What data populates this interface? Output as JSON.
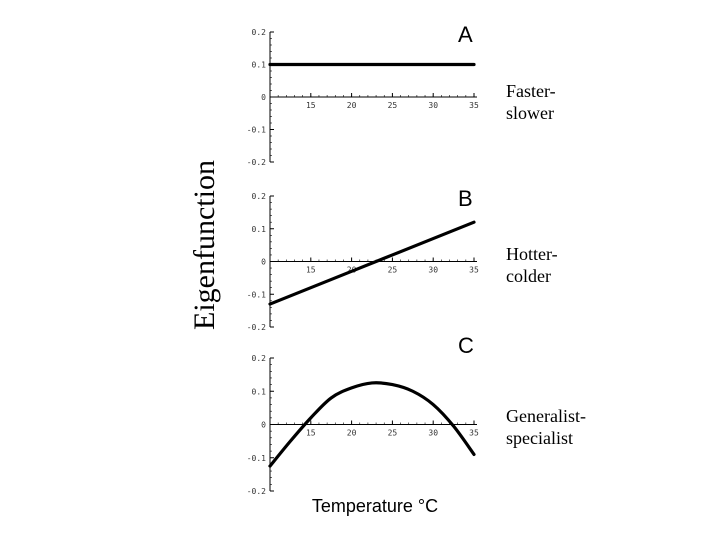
{
  "figure": {
    "ylabel": "Eigenfunction",
    "xlabel": "Temperature °C",
    "panels": [
      {
        "letter": "A",
        "description_line1": "Faster-",
        "description_line2": "slower"
      },
      {
        "letter": "B",
        "description_line1": "Hotter-",
        "description_line2": "colder"
      },
      {
        "letter": "C",
        "description_line1": "Generalist-",
        "description_line2": "specialist"
      }
    ],
    "ytick_labels": [
      "0.2",
      "0.1",
      "0",
      "-0.1",
      "-0.2"
    ],
    "xtick_labels": [
      "15",
      "20",
      "25",
      "30",
      "35"
    ]
  },
  "chart_data": [
    {
      "type": "line",
      "title": "A",
      "annotation": "Faster-slower",
      "xlabel": "Temperature °C",
      "ylabel": "Eigenfunction",
      "x": [
        10,
        15,
        20,
        25,
        30,
        35
      ],
      "values": [
        0.1,
        0.1,
        0.1,
        0.1,
        0.1,
        0.1
      ],
      "xlim": [
        10,
        35
      ],
      "ylim": [
        -0.2,
        0.2
      ],
      "xticks": [
        15,
        20,
        25,
        30,
        35
      ],
      "yticks": [
        -0.2,
        -0.1,
        0,
        0.1,
        0.2
      ],
      "grid": false
    },
    {
      "type": "line",
      "title": "B",
      "annotation": "Hotter-colder",
      "xlabel": "Temperature °C",
      "ylabel": "Eigenfunction",
      "x": [
        10,
        15,
        20,
        25,
        30,
        35
      ],
      "values": [
        -0.13,
        -0.08,
        -0.03,
        0.02,
        0.07,
        0.12
      ],
      "xlim": [
        10,
        35
      ],
      "ylim": [
        -0.2,
        0.2
      ],
      "xticks": [
        15,
        20,
        25,
        30,
        35
      ],
      "yticks": [
        -0.2,
        -0.1,
        0,
        0.1,
        0.2
      ],
      "grid": false
    },
    {
      "type": "line",
      "title": "C",
      "annotation": "Generalist-specialist",
      "xlabel": "Temperature °C",
      "ylabel": "Eigenfunction",
      "x": [
        10,
        12.5,
        15,
        17.5,
        20,
        22.5,
        25,
        27.5,
        30,
        32.5,
        35
      ],
      "values": [
        -0.125,
        -0.05,
        0.02,
        0.08,
        0.11,
        0.125,
        0.12,
        0.1,
        0.06,
        -0.005,
        -0.09
      ],
      "xlim": [
        10,
        35
      ],
      "ylim": [
        -0.2,
        0.2
      ],
      "xticks": [
        15,
        20,
        25,
        30,
        35
      ],
      "yticks": [
        -0.2,
        -0.1,
        0,
        0.1,
        0.2
      ],
      "grid": false
    }
  ]
}
